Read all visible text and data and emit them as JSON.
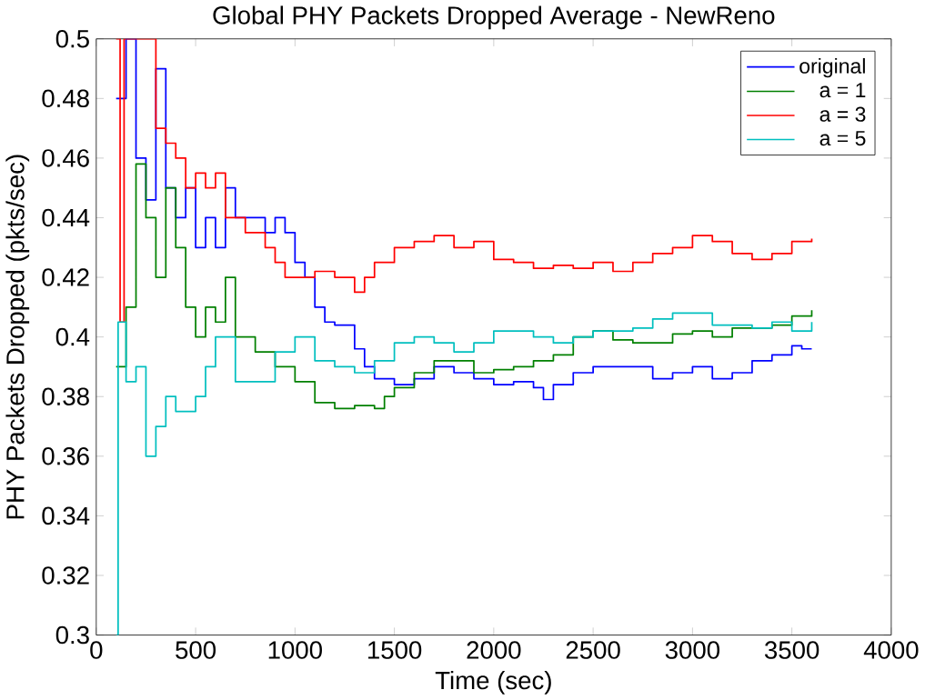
{
  "chart_data": {
    "type": "step",
    "title": "Global PHY Packets Dropped Average - NewReno",
    "xlabel": "Time (sec)",
    "ylabel": "PHY Packets Dropped (pkts/sec)",
    "xlim": [
      0,
      4000
    ],
    "ylim": [
      0.3,
      0.5
    ],
    "xticks": [
      0,
      500,
      1000,
      1500,
      2000,
      2500,
      3000,
      3500,
      4000
    ],
    "yticks": [
      0.3,
      0.32,
      0.34,
      0.36,
      0.38,
      0.4,
      0.42,
      0.44,
      0.46,
      0.48,
      0.5
    ],
    "grid": false,
    "legend": "top right",
    "series": [
      {
        "name": "original",
        "color": "#0000ff",
        "x": [
          100,
          150,
          200,
          250,
          300,
          350,
          400,
          450,
          500,
          550,
          600,
          650,
          700,
          800,
          850,
          900,
          950,
          1000,
          1050,
          1100,
          1150,
          1200,
          1300,
          1350,
          1400,
          1500,
          1600,
          1700,
          1800,
          1900,
          2000,
          2100,
          2200,
          2250,
          2300,
          2400,
          2500,
          2600,
          2700,
          2800,
          2900,
          3000,
          3100,
          3200,
          3300,
          3400,
          3500,
          3550,
          3600
        ],
        "values": [
          0.48,
          0.5,
          0.46,
          0.446,
          0.49,
          0.45,
          0.44,
          0.45,
          0.43,
          0.44,
          0.43,
          0.45,
          0.44,
          0.44,
          0.435,
          0.44,
          0.435,
          0.425,
          0.42,
          0.41,
          0.405,
          0.404,
          0.396,
          0.39,
          0.386,
          0.384,
          0.386,
          0.39,
          0.388,
          0.386,
          0.384,
          0.385,
          0.383,
          0.379,
          0.384,
          0.388,
          0.39,
          0.39,
          0.39,
          0.386,
          0.388,
          0.39,
          0.386,
          0.388,
          0.392,
          0.394,
          0.397,
          0.396,
          0.396
        ]
      },
      {
        "name": "a = 1",
        "color": "#008000",
        "x": [
          100,
          150,
          200,
          250,
          300,
          350,
          400,
          450,
          500,
          550,
          600,
          650,
          700,
          800,
          900,
          1000,
          1100,
          1200,
          1300,
          1400,
          1450,
          1500,
          1600,
          1700,
          1800,
          1900,
          2000,
          2100,
          2200,
          2300,
          2400,
          2500,
          2600,
          2700,
          2800,
          2900,
          3000,
          3100,
          3200,
          3300,
          3400,
          3500,
          3600
        ],
        "values": [
          0.39,
          0.41,
          0.458,
          0.44,
          0.42,
          0.45,
          0.43,
          0.41,
          0.4,
          0.41,
          0.405,
          0.42,
          0.4,
          0.395,
          0.39,
          0.385,
          0.378,
          0.376,
          0.377,
          0.376,
          0.38,
          0.383,
          0.388,
          0.392,
          0.392,
          0.388,
          0.389,
          0.39,
          0.392,
          0.394,
          0.4,
          0.402,
          0.399,
          0.398,
          0.398,
          0.401,
          0.402,
          0.4,
          0.403,
          0.403,
          0.404,
          0.407,
          0.409
        ]
      },
      {
        "name": "a = 3",
        "color": "#ff0000",
        "x": [
          100,
          120,
          140,
          250,
          300,
          350,
          400,
          450,
          500,
          550,
          600,
          650,
          700,
          750,
          800,
          850,
          900,
          950,
          1000,
          1100,
          1200,
          1300,
          1350,
          1400,
          1500,
          1600,
          1700,
          1800,
          1900,
          2000,
          2100,
          2200,
          2300,
          2400,
          2500,
          2600,
          2700,
          2800,
          2900,
          3000,
          3100,
          3200,
          3300,
          3400,
          3500,
          3600
        ],
        "values": [
          0.5,
          0.405,
          0.5,
          0.5,
          0.47,
          0.465,
          0.46,
          0.45,
          0.455,
          0.45,
          0.455,
          0.44,
          0.44,
          0.435,
          0.435,
          0.43,
          0.425,
          0.42,
          0.42,
          0.422,
          0.42,
          0.415,
          0.42,
          0.425,
          0.43,
          0.432,
          0.434,
          0.43,
          0.432,
          0.426,
          0.425,
          0.423,
          0.424,
          0.423,
          0.425,
          0.422,
          0.425,
          0.428,
          0.43,
          0.434,
          0.432,
          0.428,
          0.426,
          0.428,
          0.432,
          0.433
        ]
      },
      {
        "name": "a = 5",
        "color": "#00bfbf",
        "x": [
          100,
          110,
          150,
          200,
          250,
          300,
          350,
          400,
          450,
          500,
          550,
          600,
          700,
          800,
          900,
          1000,
          1100,
          1200,
          1300,
          1400,
          1500,
          1600,
          1700,
          1800,
          1900,
          2000,
          2100,
          2200,
          2300,
          2400,
          2500,
          2600,
          2700,
          2800,
          2900,
          3000,
          3100,
          3200,
          3300,
          3400,
          3500,
          3600
        ],
        "values": [
          0.3,
          0.405,
          0.385,
          0.39,
          0.36,
          0.37,
          0.38,
          0.375,
          0.375,
          0.38,
          0.39,
          0.4,
          0.385,
          0.385,
          0.395,
          0.4,
          0.392,
          0.39,
          0.388,
          0.392,
          0.398,
          0.4,
          0.398,
          0.395,
          0.398,
          0.402,
          0.402,
          0.4,
          0.398,
          0.4,
          0.402,
          0.402,
          0.403,
          0.406,
          0.408,
          0.408,
          0.404,
          0.404,
          0.403,
          0.405,
          0.402,
          0.405
        ]
      }
    ]
  }
}
